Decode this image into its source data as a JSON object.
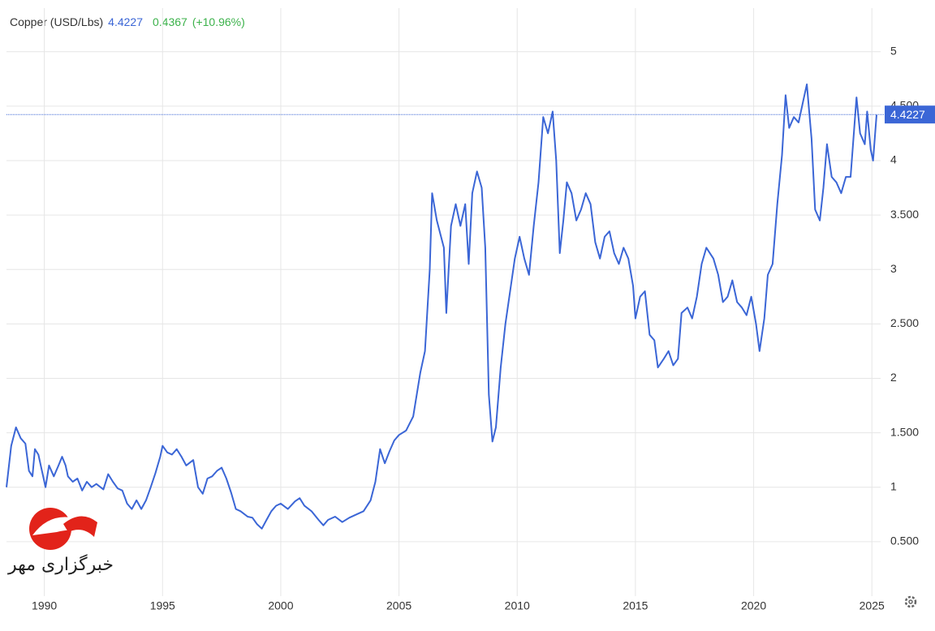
{
  "chart_data": {
    "type": "line",
    "title": "Copper (USD/Lbs)",
    "last_value": 4.4227,
    "change": 0.4367,
    "change_label": "(+10.96%)",
    "watermark": "خبرگزاری مهر",
    "color": "#3b66d6",
    "grid": true,
    "xlim": [
      1988.4,
      2025.37
    ],
    "xticks": [
      1990,
      1995,
      2000,
      2005,
      2010,
      2015,
      2020,
      2025
    ],
    "ylim": [
      0,
      5.4
    ],
    "yticks": [
      {
        "value": 0.5,
        "label": "0.500"
      },
      1,
      {
        "value": 1.5,
        "label": "1.500"
      },
      2,
      {
        "value": 2.5,
        "label": "2.500"
      },
      3,
      {
        "value": 3.5,
        "label": "3.500"
      },
      4,
      {
        "value": 4.5,
        "label": "4.500"
      },
      5
    ],
    "x": [
      1988.4,
      1988.6,
      1988.8,
      1989.0,
      1989.2,
      1989.35,
      1989.5,
      1989.6,
      1989.75,
      1989.9,
      1990.05,
      1990.2,
      1990.4,
      1990.6,
      1990.75,
      1990.9,
      1991.0,
      1991.2,
      1991.4,
      1991.6,
      1991.8,
      1992.0,
      1992.2,
      1992.5,
      1992.7,
      1992.9,
      1993.1,
      1993.3,
      1993.5,
      1993.7,
      1993.9,
      1994.1,
      1994.3,
      1994.5,
      1994.7,
      1994.9,
      1995.0,
      1995.2,
      1995.4,
      1995.6,
      1995.8,
      1996.0,
      1996.3,
      1996.5,
      1996.7,
      1996.9,
      1997.1,
      1997.3,
      1997.5,
      1997.7,
      1997.9,
      1998.1,
      1998.3,
      1998.6,
      1998.8,
      1999.0,
      1999.2,
      1999.4,
      1999.6,
      1999.8,
      2000.0,
      2000.3,
      2000.6,
      2000.8,
      2001.0,
      2001.3,
      2001.6,
      2001.8,
      2002.0,
      2002.3,
      2002.6,
      2002.9,
      2003.2,
      2003.5,
      2003.8,
      2004.0,
      2004.2,
      2004.4,
      2004.6,
      2004.8,
      2005.0,
      2005.3,
      2005.6,
      2005.9,
      2006.1,
      2006.3,
      2006.4,
      2006.6,
      2006.9,
      2007.0,
      2007.2,
      2007.4,
      2007.6,
      2007.8,
      2007.95,
      2008.1,
      2008.3,
      2008.5,
      2008.65,
      2008.8,
      2008.95,
      2009.1,
      2009.3,
      2009.5,
      2009.7,
      2009.9,
      2010.1,
      2010.3,
      2010.5,
      2010.7,
      2010.9,
      2011.1,
      2011.3,
      2011.5,
      2011.65,
      2011.8,
      2011.95,
      2012.1,
      2012.3,
      2012.5,
      2012.7,
      2012.9,
      2013.1,
      2013.3,
      2013.5,
      2013.7,
      2013.9,
      2014.1,
      2014.3,
      2014.5,
      2014.7,
      2014.9,
      2015.0,
      2015.2,
      2015.4,
      2015.6,
      2015.8,
      2015.95,
      2016.2,
      2016.4,
      2016.6,
      2016.8,
      2016.95,
      2017.2,
      2017.4,
      2017.6,
      2017.8,
      2018.0,
      2018.3,
      2018.5,
      2018.7,
      2018.9,
      2019.1,
      2019.3,
      2019.5,
      2019.7,
      2019.9,
      2020.1,
      2020.25,
      2020.45,
      2020.6,
      2020.8,
      2021.0,
      2021.2,
      2021.35,
      2021.5,
      2021.7,
      2021.9,
      2022.1,
      2022.25,
      2022.45,
      2022.6,
      2022.8,
      2022.95,
      2023.1,
      2023.3,
      2023.5,
      2023.7,
      2023.9,
      2024.1,
      2024.35,
      2024.5,
      2024.7,
      2024.8,
      2024.95,
      2025.05,
      2025.2
    ],
    "values": [
      1.0,
      1.38,
      1.55,
      1.45,
      1.4,
      1.15,
      1.1,
      1.35,
      1.3,
      1.15,
      1.0,
      1.2,
      1.1,
      1.2,
      1.28,
      1.2,
      1.1,
      1.05,
      1.08,
      0.97,
      1.05,
      1.0,
      1.03,
      0.98,
      1.12,
      1.05,
      0.99,
      0.97,
      0.85,
      0.8,
      0.88,
      0.8,
      0.88,
      1.0,
      1.13,
      1.28,
      1.38,
      1.32,
      1.3,
      1.35,
      1.28,
      1.2,
      1.25,
      1.0,
      0.94,
      1.08,
      1.1,
      1.15,
      1.18,
      1.08,
      0.95,
      0.8,
      0.78,
      0.73,
      0.72,
      0.66,
      0.62,
      0.7,
      0.78,
      0.83,
      0.85,
      0.8,
      0.87,
      0.9,
      0.83,
      0.78,
      0.7,
      0.65,
      0.7,
      0.73,
      0.68,
      0.72,
      0.75,
      0.78,
      0.88,
      1.05,
      1.35,
      1.22,
      1.33,
      1.43,
      1.48,
      1.52,
      1.65,
      2.05,
      2.25,
      3.0,
      3.7,
      3.45,
      3.2,
      2.6,
      3.4,
      3.6,
      3.4,
      3.6,
      3.05,
      3.7,
      3.9,
      3.75,
      3.2,
      1.85,
      1.42,
      1.55,
      2.1,
      2.5,
      2.8,
      3.1,
      3.3,
      3.1,
      2.95,
      3.4,
      3.8,
      4.4,
      4.25,
      4.45,
      4.0,
      3.15,
      3.45,
      3.8,
      3.7,
      3.45,
      3.55,
      3.7,
      3.6,
      3.25,
      3.1,
      3.3,
      3.35,
      3.15,
      3.05,
      3.2,
      3.1,
      2.85,
      2.55,
      2.75,
      2.8,
      2.4,
      2.35,
      2.1,
      2.18,
      2.25,
      2.12,
      2.18,
      2.6,
      2.65,
      2.55,
      2.75,
      3.05,
      3.2,
      3.1,
      2.95,
      2.7,
      2.75,
      2.9,
      2.7,
      2.65,
      2.58,
      2.75,
      2.5,
      2.25,
      2.55,
      2.95,
      3.05,
      3.6,
      4.05,
      4.6,
      4.3,
      4.4,
      4.35,
      4.55,
      4.7,
      4.2,
      3.55,
      3.45,
      3.75,
      4.15,
      3.85,
      3.8,
      3.7,
      3.85,
      3.85,
      4.58,
      4.25,
      4.15,
      4.45,
      4.1,
      4.0,
      4.42
    ]
  }
}
